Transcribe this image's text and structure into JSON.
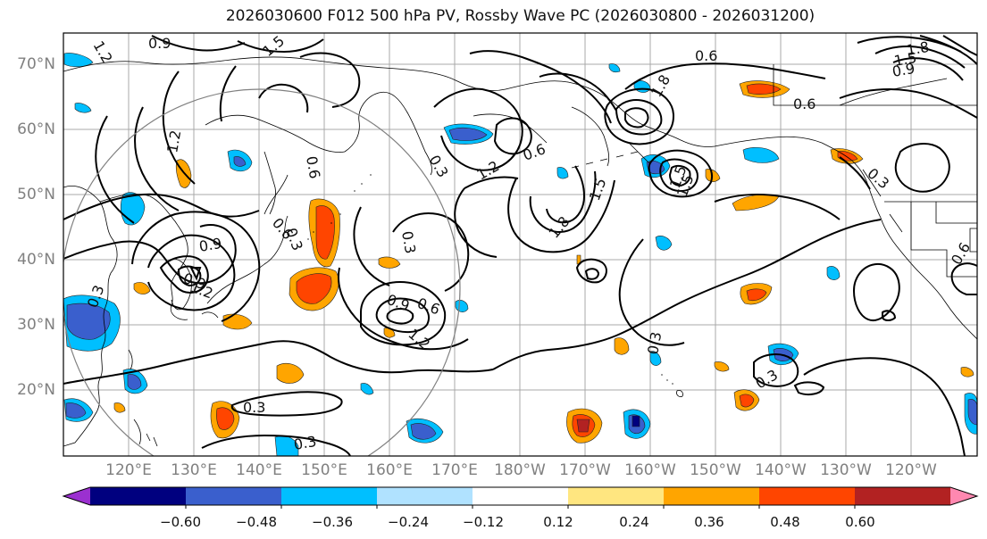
{
  "title": "2026030600 F012 500 hPa PV, Rossby Wave PC (2026030800 - 2026031200)",
  "lat_labels": [
    "70°N",
    "60°N",
    "50°N",
    "40°N",
    "30°N",
    "20°N"
  ],
  "lon_labels": [
    "120°E",
    "130°E",
    "140°E",
    "150°E",
    "160°E",
    "170°E",
    "180°W",
    "170°W",
    "160°W",
    "150°W",
    "140°W",
    "130°W",
    "120°W"
  ],
  "colorbar": {
    "ticks": [
      "−0.60",
      "−0.48",
      "−0.36",
      "−0.24",
      "−0.12",
      "0.12",
      "0.24",
      "0.36",
      "0.48",
      "0.60"
    ],
    "colors": [
      "#9b30d0",
      "#00007f",
      "#3a5fcd",
      "#00bfff",
      "#b0e2ff",
      "#ffffff",
      "#ffe680",
      "#ffa500",
      "#ff4500",
      "#b22222",
      "#ff88b0"
    ]
  },
  "contour_labels": [
    "0.9",
    "1.2",
    "1.5",
    "0.6",
    "0.6",
    "1.8",
    "0.6",
    "1.2",
    "0.6",
    "1.2",
    "1.5",
    "1.8",
    "0.6",
    "0.3",
    "0.9",
    "0.3",
    "0.9",
    "1.2",
    "0.9",
    "1.2",
    "0.6",
    "1.5",
    "0.3",
    "0.3",
    "0.3",
    "0.3",
    "0.3",
    "0.3",
    "1.8",
    "1.5",
    "0.9",
    "0.6",
    "1.5",
    "0.3"
  ]
}
